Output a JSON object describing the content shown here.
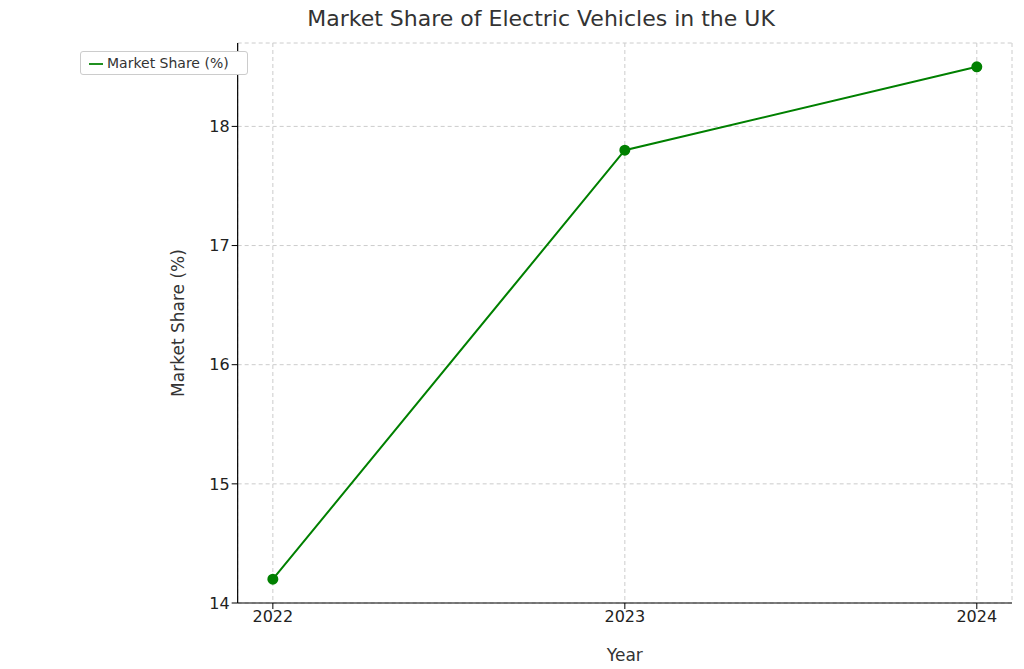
{
  "chart_data": {
    "type": "line",
    "title": "Market Share of Electric Vehicles in the UK",
    "x_label": "Year",
    "y_label": "Market Share (%)",
    "x": [
      2022,
      2023,
      2024
    ],
    "series": [
      {
        "name": "Market Share (%)",
        "color": "#008000",
        "values": [
          14.2,
          17.8,
          18.5
        ],
        "marker": "o",
        "line_style": "solid"
      }
    ],
    "xlim": [
      2021.9,
      2024.1
    ],
    "xticks": [
      2022,
      2023,
      2024
    ],
    "ylim": [
      14,
      18.7
    ],
    "yticks": [
      14,
      15,
      16,
      17,
      18
    ],
    "grid": true,
    "legend": "upper left"
  }
}
